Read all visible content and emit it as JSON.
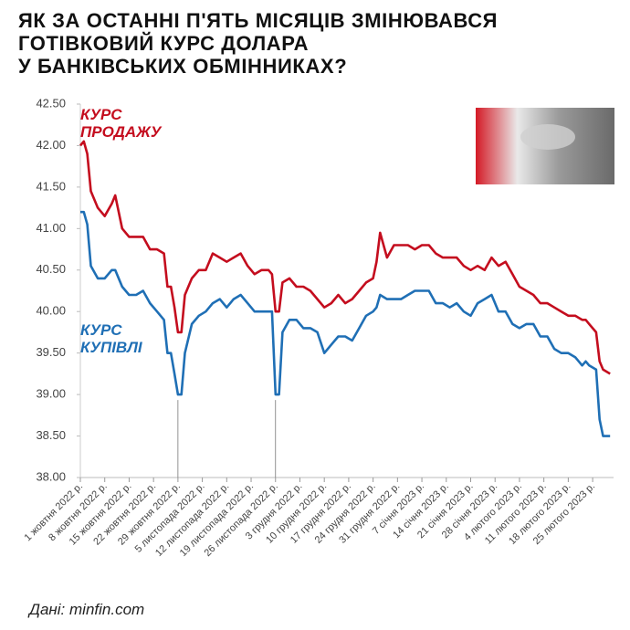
{
  "chart_data": {
    "type": "line",
    "title": [
      "ЯК ЗА ОСТАННІ П'ЯТЬ МІСЯЦІВ ЗМІНЮВАВСЯ",
      "ГОТІВКОВИЙ КУРС ДОЛАРА",
      "У БАНКІВСЬКИХ ОБМІННИКАХ?"
    ],
    "source": "Дані: minfin.com",
    "x": [
      "2022-10-01",
      "2022-10-02",
      "2022-10-03",
      "2022-10-04",
      "2022-10-06",
      "2022-10-08",
      "2022-10-10",
      "2022-10-11",
      "2022-10-13",
      "2022-10-15",
      "2022-10-17",
      "2022-10-19",
      "2022-10-21",
      "2022-10-23",
      "2022-10-25",
      "2022-10-26",
      "2022-10-27",
      "2022-10-28",
      "2022-10-29",
      "2022-10-30",
      "2022-10-31",
      "2022-11-02",
      "2022-11-04",
      "2022-11-06",
      "2022-11-08",
      "2022-11-10",
      "2022-11-12",
      "2022-11-14",
      "2022-11-16",
      "2022-11-18",
      "2022-11-20",
      "2022-11-22",
      "2022-11-24",
      "2022-11-25",
      "2022-11-26",
      "2022-11-27",
      "2022-11-28",
      "2022-11-30",
      "2022-12-02",
      "2022-12-04",
      "2022-12-06",
      "2022-12-08",
      "2022-12-10",
      "2022-12-12",
      "2022-12-14",
      "2022-12-16",
      "2022-12-18",
      "2022-12-20",
      "2022-12-22",
      "2022-12-24",
      "2022-12-25",
      "2022-12-26",
      "2022-12-28",
      "2022-12-30",
      "2023-01-01",
      "2023-01-03",
      "2023-01-05",
      "2023-01-07",
      "2023-01-09",
      "2023-01-11",
      "2023-01-13",
      "2023-01-15",
      "2023-01-17",
      "2023-01-19",
      "2023-01-21",
      "2023-01-23",
      "2023-01-25",
      "2023-01-27",
      "2023-01-29",
      "2023-01-31",
      "2023-02-02",
      "2023-02-04",
      "2023-02-06",
      "2023-02-08",
      "2023-02-10",
      "2023-02-12",
      "2023-02-14",
      "2023-02-16",
      "2023-02-18",
      "2023-02-20",
      "2023-02-22",
      "2023-02-23",
      "2023-02-24",
      "2023-02-26",
      "2023-02-27",
      "2023-02-28",
      "2023-03-02"
    ],
    "series": [
      {
        "name": "КУРС ПРОДАЖУ",
        "color": "#c40d1e",
        "values": [
          42.0,
          42.05,
          41.9,
          41.45,
          41.25,
          41.15,
          41.3,
          41.4,
          41.0,
          40.9,
          40.9,
          40.9,
          40.75,
          40.75,
          40.7,
          40.3,
          40.3,
          40.05,
          39.75,
          39.75,
          40.2,
          40.4,
          40.5,
          40.5,
          40.7,
          40.65,
          40.6,
          40.65,
          40.7,
          40.55,
          40.45,
          40.5,
          40.5,
          40.45,
          40.0,
          40.0,
          40.35,
          40.4,
          40.3,
          40.3,
          40.25,
          40.15,
          40.05,
          40.1,
          40.2,
          40.1,
          40.15,
          40.25,
          40.35,
          40.4,
          40.6,
          40.95,
          40.65,
          40.8,
          40.8,
          40.8,
          40.75,
          40.8,
          40.8,
          40.7,
          40.65,
          40.65,
          40.65,
          40.55,
          40.5,
          40.55,
          40.5,
          40.65,
          40.55,
          40.6,
          40.45,
          40.3,
          40.25,
          40.2,
          40.1,
          40.1,
          40.05,
          40.0,
          39.95,
          39.95,
          39.9,
          39.9,
          39.85,
          39.75,
          39.4,
          39.3,
          39.25
        ]
      },
      {
        "name": "КУРС КУПІВЛІ",
        "color": "#1f6fb5",
        "values": [
          41.2,
          41.2,
          41.05,
          40.55,
          40.4,
          40.4,
          40.5,
          40.5,
          40.3,
          40.2,
          40.2,
          40.25,
          40.1,
          40.0,
          39.9,
          39.5,
          39.5,
          39.25,
          39.0,
          39.0,
          39.5,
          39.85,
          39.95,
          40.0,
          40.1,
          40.15,
          40.05,
          40.15,
          40.2,
          40.1,
          40.0,
          40.0,
          40.0,
          40.0,
          39.0,
          39.0,
          39.75,
          39.9,
          39.9,
          39.8,
          39.8,
          39.75,
          39.5,
          39.6,
          39.7,
          39.7,
          39.65,
          39.8,
          39.95,
          40.0,
          40.05,
          40.2,
          40.15,
          40.15,
          40.15,
          40.2,
          40.25,
          40.25,
          40.25,
          40.1,
          40.1,
          40.05,
          40.1,
          40.0,
          39.95,
          40.1,
          40.15,
          40.2,
          40.0,
          40.0,
          39.85,
          39.8,
          39.85,
          39.85,
          39.7,
          39.7,
          39.55,
          39.5,
          39.5,
          39.45,
          39.35,
          39.4,
          39.35,
          39.3,
          38.7,
          38.5,
          38.5
        ]
      }
    ],
    "xlim": [
      "2022-10-01",
      "2023-03-03"
    ],
    "xticks": [
      {
        "value": "2022-10-01",
        "label": "1 жовтня 2022 р."
      },
      {
        "value": "2022-10-08",
        "label": "8 жовтня 2022 р."
      },
      {
        "value": "2022-10-15",
        "label": "15 жовтня 2022 р."
      },
      {
        "value": "2022-10-22",
        "label": "22 жовтня 2022 р."
      },
      {
        "value": "2022-10-29",
        "label": "29 жовтня 2022 р."
      },
      {
        "value": "2022-11-05",
        "label": "5 листопада 2022 р."
      },
      {
        "value": "2022-11-12",
        "label": "12 листопада 2022 р."
      },
      {
        "value": "2022-11-19",
        "label": "19 листопада 2022 р."
      },
      {
        "value": "2022-11-26",
        "label": "26 листопада 2022 р."
      },
      {
        "value": "2022-12-03",
        "label": "3 грудня 2022 р."
      },
      {
        "value": "2022-12-10",
        "label": "10 грудня 2022 р."
      },
      {
        "value": "2022-12-17",
        "label": "17 грудня 2022 р."
      },
      {
        "value": "2022-12-24",
        "label": "24 грудня 2022 р."
      },
      {
        "value": "2022-12-31",
        "label": "31 грудня 2022 р."
      },
      {
        "value": "2023-01-07",
        "label": "7 січня 2023 р."
      },
      {
        "value": "2023-01-14",
        "label": "14 січня 2023 р."
      },
      {
        "value": "2023-01-21",
        "label": "21 січня 2023 р."
      },
      {
        "value": "2023-01-28",
        "label": "28 січня 2023 р."
      },
      {
        "value": "2023-02-04",
        "label": "4 лютого 2023 р."
      },
      {
        "value": "2023-02-11",
        "label": "11 лютого 2023 р."
      },
      {
        "value": "2023-02-18",
        "label": "18 лютого 2023 р."
      },
      {
        "value": "2023-02-25",
        "label": "25 лютого 2023 р."
      }
    ],
    "ylim": [
      38.0,
      42.5
    ],
    "yticks": [
      {
        "value": 38.0,
        "label": "38.00"
      },
      {
        "value": 38.5,
        "label": "38.50"
      },
      {
        "value": 39.0,
        "label": "39.00"
      },
      {
        "value": 39.5,
        "label": "39.50"
      },
      {
        "value": 40.0,
        "label": "40.00"
      },
      {
        "value": 40.5,
        "label": "40.50"
      },
      {
        "value": 41.0,
        "label": "41.00"
      },
      {
        "value": 41.5,
        "label": "41.50"
      },
      {
        "value": 42.0,
        "label": "42.00"
      },
      {
        "value": 42.5,
        "label": "42.50"
      }
    ],
    "vlines": [
      "2022-10-29",
      "2022-11-26"
    ]
  }
}
